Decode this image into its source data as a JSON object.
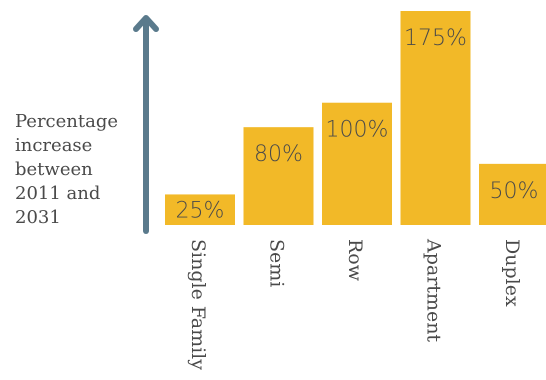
{
  "chart_data": {
    "type": "bar",
    "ylabel": "Percentage increase between 2011 and 2031",
    "ylabel_lines": [
      "Percentage",
      "increase",
      "between",
      "2011 and",
      "2031"
    ],
    "categories": [
      "Single Family",
      "Semi",
      "Row",
      "Apartment",
      "Duplex"
    ],
    "values": [
      25,
      80,
      100,
      175,
      50
    ],
    "data_labels": [
      "25%",
      "80%",
      "100%",
      "175%",
      "50%"
    ],
    "ylim": [
      0,
      175
    ],
    "grid": false,
    "legend": "none",
    "colors": {
      "bar": "#f2b928",
      "axis_arrow": "#5a7a8c",
      "text": "#4a4a4a"
    }
  }
}
